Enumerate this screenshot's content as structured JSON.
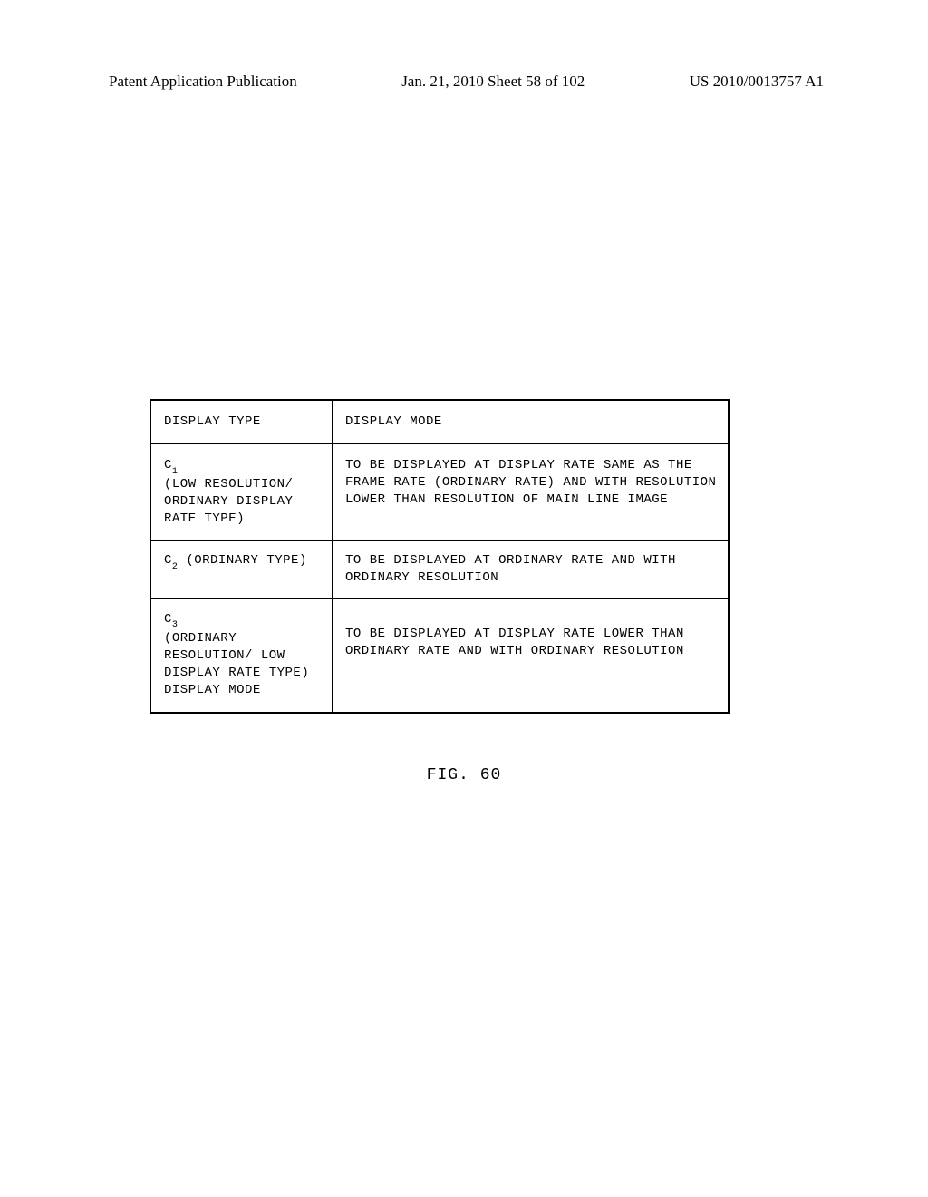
{
  "header": {
    "publication_type": "Patent Application Publication",
    "date_sheet": "Jan. 21, 2010  Sheet 58 of 102",
    "publication_number": "US 2010/0013757 A1"
  },
  "table": {
    "columns": [
      "DISPLAY TYPE",
      "DISPLAY MODE"
    ],
    "rows": [
      {
        "type_prefix": "C",
        "type_subscript": "1",
        "type_description": "(LOW RESOLUTION/ ORDINARY DISPLAY RATE TYPE)",
        "mode": "TO BE DISPLAYED AT DISPLAY RATE SAME AS THE FRAME RATE (ORDINARY RATE) AND WITH RESOLUTION LOWER THAN RESOLUTION OF MAIN LINE IMAGE"
      },
      {
        "type_prefix": "C",
        "type_subscript": "2",
        "type_description": " (ORDINARY TYPE)",
        "mode": "TO BE DISPLAYED AT ORDINARY RATE AND WITH ORDINARY RESOLUTION"
      },
      {
        "type_prefix": "C",
        "type_subscript": "3",
        "type_description": "(ORDINARY RESOLUTION/ LOW DISPLAY RATE TYPE) DISPLAY MODE",
        "mode": "TO BE DISPLAYED AT DISPLAY RATE LOWER THAN ORDINARY RATE AND WITH ORDINARY RESOLUTION"
      }
    ]
  },
  "figure_caption": "FIG. 60"
}
